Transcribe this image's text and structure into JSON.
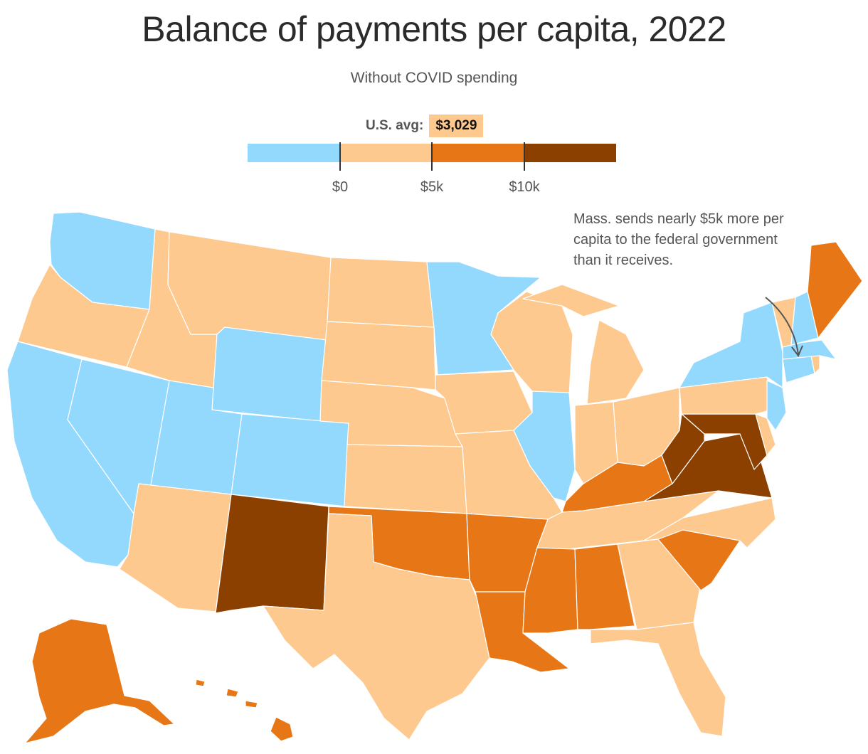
{
  "title": "Balance of payments per capita, 2022",
  "subtitle": "Without COVID spending",
  "us_avg": {
    "label": "U.S. avg:",
    "value": "$3,029"
  },
  "legend": {
    "colors": {
      "negative": "#93d9fe",
      "zero_to_5k": "#fdc98f",
      "five_to_10k": "#e77716",
      "over_10k": "#8b4000"
    },
    "ticks": [
      "$0",
      "$5k",
      "$10k"
    ]
  },
  "annotation": "Mass. sends nearly $5k more per capita to the federal government than it receives.",
  "states": [
    {
      "id": "WA",
      "bin": "negative"
    },
    {
      "id": "OR",
      "bin": "zero_to_5k"
    },
    {
      "id": "CA",
      "bin": "negative"
    },
    {
      "id": "NV",
      "bin": "negative"
    },
    {
      "id": "ID",
      "bin": "zero_to_5k"
    },
    {
      "id": "MT",
      "bin": "zero_to_5k"
    },
    {
      "id": "WY",
      "bin": "negative"
    },
    {
      "id": "UT",
      "bin": "negative"
    },
    {
      "id": "CO",
      "bin": "negative"
    },
    {
      "id": "AZ",
      "bin": "zero_to_5k"
    },
    {
      "id": "NM",
      "bin": "over_10k"
    },
    {
      "id": "ND",
      "bin": "zero_to_5k"
    },
    {
      "id": "SD",
      "bin": "zero_to_5k"
    },
    {
      "id": "NE",
      "bin": "zero_to_5k"
    },
    {
      "id": "KS",
      "bin": "zero_to_5k"
    },
    {
      "id": "OK",
      "bin": "five_to_10k"
    },
    {
      "id": "TX",
      "bin": "zero_to_5k"
    },
    {
      "id": "MN",
      "bin": "negative"
    },
    {
      "id": "IA",
      "bin": "zero_to_5k"
    },
    {
      "id": "MO",
      "bin": "zero_to_5k"
    },
    {
      "id": "AR",
      "bin": "five_to_10k"
    },
    {
      "id": "LA",
      "bin": "five_to_10k"
    },
    {
      "id": "WI",
      "bin": "zero_to_5k"
    },
    {
      "id": "IL",
      "bin": "negative"
    },
    {
      "id": "MI",
      "bin": "zero_to_5k"
    },
    {
      "id": "IN",
      "bin": "zero_to_5k"
    },
    {
      "id": "OH",
      "bin": "zero_to_5k"
    },
    {
      "id": "KY",
      "bin": "five_to_10k"
    },
    {
      "id": "TN",
      "bin": "zero_to_5k"
    },
    {
      "id": "MS",
      "bin": "five_to_10k"
    },
    {
      "id": "AL",
      "bin": "five_to_10k"
    },
    {
      "id": "GA",
      "bin": "zero_to_5k"
    },
    {
      "id": "FL",
      "bin": "zero_to_5k"
    },
    {
      "id": "SC",
      "bin": "five_to_10k"
    },
    {
      "id": "NC",
      "bin": "zero_to_5k"
    },
    {
      "id": "VA",
      "bin": "over_10k"
    },
    {
      "id": "WV",
      "bin": "over_10k"
    },
    {
      "id": "MD",
      "bin": "over_10k"
    },
    {
      "id": "DE",
      "bin": "zero_to_5k"
    },
    {
      "id": "PA",
      "bin": "zero_to_5k"
    },
    {
      "id": "NJ",
      "bin": "negative"
    },
    {
      "id": "NY",
      "bin": "negative"
    },
    {
      "id": "CT",
      "bin": "negative"
    },
    {
      "id": "RI",
      "bin": "zero_to_5k"
    },
    {
      "id": "MA",
      "bin": "negative"
    },
    {
      "id": "VT",
      "bin": "zero_to_5k"
    },
    {
      "id": "NH",
      "bin": "negative"
    },
    {
      "id": "ME",
      "bin": "five_to_10k"
    },
    {
      "id": "AK",
      "bin": "five_to_10k"
    },
    {
      "id": "HI",
      "bin": "five_to_10k"
    }
  ]
}
